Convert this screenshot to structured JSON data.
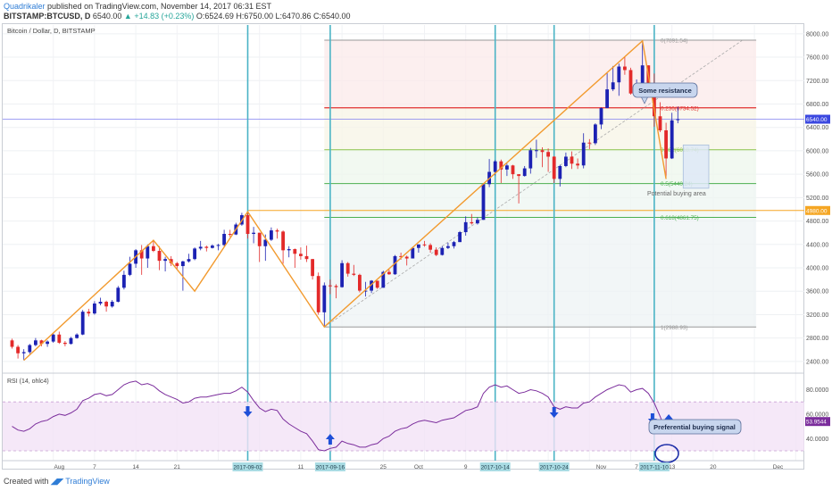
{
  "header": {
    "author": "Quadrikaler",
    "published": "published on TradingView.com, November 14, 2017 06:31 EST",
    "symbol": "BITSTAMP:BTCUSD, D",
    "price": "6540.00",
    "change": "▲ +14.83 (+0.23%)",
    "ohlc": "O:6524.69 H:6750.00 L:6470.86 C:6540.00"
  },
  "footer": {
    "created": "Created with",
    "brand": "TradingView"
  },
  "colors": {
    "up": "#1c22b3",
    "down": "#e32a2a",
    "zigzag": "#f29a2e",
    "vline": "#4ab3c5",
    "rsi": "#7b2d9c",
    "arrow": "#1e4fd8"
  },
  "chart_data": {
    "type": "candlestick",
    "title": "Bitcoin / Dollar, D, BITSTAMP",
    "price_axis": {
      "ticks": [
        "2400.00",
        "2800.00",
        "3200.00",
        "3600.00",
        "4000.00",
        "4400.00",
        "4800.00",
        "5200.00",
        "5600.00",
        "6000.00",
        "6400.00",
        "6800.00",
        "7200.00",
        "7600.00",
        "8000.00"
      ],
      "ylim": [
        2200,
        8150
      ]
    },
    "time_axis": {
      "ticks": [
        "Aug",
        "7",
        "14",
        "21",
        "11",
        "25",
        "Oct",
        "9",
        "Nov",
        "7",
        "13",
        "20",
        "Dec",
        "11"
      ],
      "highlighted": [
        "2017-09-02",
        "2017-09-16",
        "2017-10-14",
        "2017-10-24",
        "2017-11-10"
      ],
      "range": [
        "2017-07-24",
        "2017-12-11"
      ]
    },
    "current_price_label": "6540.00",
    "level_label": "4980.00",
    "fib_levels": [
      {
        "label": "0(7891.54)",
        "value": 7891.54
      },
      {
        "label": "0.236(6734.52)",
        "value": 6734.52
      },
      {
        "label": "0.382(6018.74)",
        "value": 6018.74
      },
      {
        "label": "0.5(5440.24)",
        "value": 5440.24
      },
      {
        "label": "0.618(4861.75)",
        "value": 4861.75
      },
      {
        "label": "1(2988.93)",
        "value": 2988.93
      }
    ],
    "annotations": [
      "Some resistance",
      "Potential buying area",
      "Preferential buying signal"
    ],
    "rsi": {
      "label": "RSI (14, ohlc4)",
      "current": "53.9544",
      "ticks": [
        "40.0000",
        "60.0000",
        "80.0000"
      ],
      "ylim": [
        22,
        92
      ],
      "band": [
        30,
        70
      ]
    },
    "zigzag": [
      {
        "date": "2017-07-26",
        "price": 2420
      },
      {
        "date": "2017-08-17",
        "price": 4470
      },
      {
        "date": "2017-08-24",
        "price": 3600
      },
      {
        "date": "2017-09-02",
        "price": 4960
      },
      {
        "date": "2017-09-15",
        "price": 2990
      },
      {
        "date": "2017-11-08",
        "price": 7880
      },
      {
        "date": "2017-11-12",
        "price": 5520
      }
    ],
    "ohlc": [
      [
        "2017-07-24",
        2760,
        2790,
        2620,
        2650
      ],
      [
        "2017-07-25",
        2650,
        2680,
        2450,
        2540
      ],
      [
        "2017-07-26",
        2540,
        2610,
        2420,
        2560
      ],
      [
        "2017-07-27",
        2560,
        2700,
        2530,
        2680
      ],
      [
        "2017-07-28",
        2680,
        2800,
        2660,
        2760
      ],
      [
        "2017-07-29",
        2760,
        2770,
        2660,
        2700
      ],
      [
        "2017-07-30",
        2700,
        2760,
        2650,
        2740
      ],
      [
        "2017-07-31",
        2740,
        2880,
        2720,
        2860
      ],
      [
        "2017-08-01",
        2860,
        2910,
        2700,
        2720
      ],
      [
        "2017-08-02",
        2720,
        2750,
        2660,
        2700
      ],
      [
        "2017-08-03",
        2700,
        2820,
        2690,
        2800
      ],
      [
        "2017-08-04",
        2800,
        2880,
        2790,
        2860
      ],
      [
        "2017-08-05",
        2860,
        3280,
        2850,
        3250
      ],
      [
        "2017-08-06",
        3250,
        3300,
        3170,
        3220
      ],
      [
        "2017-08-07",
        3220,
        3430,
        3200,
        3390
      ],
      [
        "2017-08-08",
        3390,
        3490,
        3360,
        3420
      ],
      [
        "2017-08-09",
        3420,
        3440,
        3250,
        3340
      ],
      [
        "2017-08-10",
        3340,
        3450,
        3320,
        3420
      ],
      [
        "2017-08-11",
        3420,
        3690,
        3410,
        3660
      ],
      [
        "2017-08-12",
        3660,
        3950,
        3630,
        3880
      ],
      [
        "2017-08-13",
        3880,
        4190,
        3860,
        4070
      ],
      [
        "2017-08-14",
        4070,
        4320,
        4000,
        4300
      ],
      [
        "2017-08-15",
        4300,
        4390,
        3880,
        4160
      ],
      [
        "2017-08-16",
        4160,
        4400,
        4000,
        4370
      ],
      [
        "2017-08-17",
        4370,
        4470,
        4270,
        4290
      ],
      [
        "2017-08-18",
        4290,
        4370,
        3960,
        4120
      ],
      [
        "2017-08-19",
        4120,
        4190,
        3940,
        4150
      ],
      [
        "2017-08-20",
        4150,
        4200,
        4030,
        4080
      ],
      [
        "2017-08-21",
        4080,
        4100,
        3970,
        4030
      ],
      [
        "2017-08-22",
        4030,
        4120,
        3610,
        4110
      ],
      [
        "2017-08-23",
        4110,
        4240,
        4090,
        4150
      ],
      [
        "2017-08-24",
        4150,
        4350,
        4130,
        4330
      ],
      [
        "2017-08-25",
        4330,
        4460,
        4300,
        4360
      ],
      [
        "2017-08-26",
        4360,
        4380,
        4280,
        4340
      ],
      [
        "2017-08-27",
        4340,
        4400,
        4330,
        4380
      ],
      [
        "2017-08-28",
        4380,
        4410,
        4300,
        4390
      ],
      [
        "2017-08-29",
        4390,
        4650,
        4370,
        4580
      ],
      [
        "2017-08-30",
        4580,
        4650,
        4530,
        4570
      ],
      [
        "2017-08-31",
        4570,
        4770,
        4560,
        4740
      ],
      [
        "2017-09-01",
        4740,
        4940,
        4720,
        4900
      ],
      [
        "2017-09-02",
        4900,
        4960,
        4500,
        4580
      ],
      [
        "2017-09-03",
        4580,
        4700,
        4420,
        4600
      ],
      [
        "2017-09-04",
        4600,
        4600,
        4100,
        4370
      ],
      [
        "2017-09-05",
        4370,
        4570,
        4120,
        4480
      ],
      [
        "2017-09-06",
        4480,
        4690,
        4460,
        4640
      ],
      [
        "2017-09-07",
        4640,
        4670,
        4500,
        4620
      ],
      [
        "2017-09-08",
        4620,
        4640,
        4070,
        4300
      ],
      [
        "2017-09-09",
        4300,
        4370,
        4180,
        4320
      ],
      [
        "2017-09-10",
        4320,
        4330,
        4000,
        4240
      ],
      [
        "2017-09-11",
        4240,
        4350,
        4140,
        4200
      ],
      [
        "2017-09-12",
        4200,
        4380,
        4100,
        4150
      ],
      [
        "2017-09-13",
        4150,
        4150,
        3800,
        3860
      ],
      [
        "2017-09-14",
        3860,
        3920,
        3200,
        3240
      ],
      [
        "2017-09-15",
        3240,
        3750,
        2990,
        3700
      ],
      [
        "2017-09-16",
        3700,
        3800,
        3550,
        3690
      ],
      [
        "2017-09-17",
        3690,
        3720,
        3480,
        3670
      ],
      [
        "2017-09-18",
        3670,
        4130,
        3660,
        4080
      ],
      [
        "2017-09-19",
        4080,
        4100,
        3850,
        3900
      ],
      [
        "2017-09-20",
        3900,
        4050,
        3860,
        3880
      ],
      [
        "2017-09-21",
        3880,
        3900,
        3580,
        3610
      ],
      [
        "2017-09-22",
        3610,
        3760,
        3510,
        3610
      ],
      [
        "2017-09-23",
        3610,
        3790,
        3570,
        3780
      ],
      [
        "2017-09-24",
        3780,
        3780,
        3640,
        3660
      ],
      [
        "2017-09-25",
        3660,
        3950,
        3660,
        3930
      ],
      [
        "2017-09-26",
        3930,
        3970,
        3880,
        3890
      ],
      [
        "2017-09-27",
        3890,
        4220,
        3880,
        4200
      ],
      [
        "2017-09-28",
        4200,
        4260,
        4140,
        4190
      ],
      [
        "2017-09-29",
        4190,
        4210,
        4040,
        4160
      ],
      [
        "2017-09-30",
        4160,
        4360,
        4160,
        4340
      ],
      [
        "2017-10-01",
        4340,
        4400,
        4260,
        4400
      ],
      [
        "2017-10-02",
        4400,
        4460,
        4360,
        4390
      ],
      [
        "2017-10-03",
        4390,
        4420,
        4260,
        4310
      ],
      [
        "2017-10-04",
        4310,
        4350,
        4200,
        4220
      ],
      [
        "2017-10-05",
        4220,
        4370,
        4210,
        4340
      ],
      [
        "2017-10-06",
        4340,
        4430,
        4320,
        4370
      ],
      [
        "2017-10-07",
        4370,
        4460,
        4330,
        4440
      ],
      [
        "2017-10-08",
        4440,
        4630,
        4440,
        4610
      ],
      [
        "2017-10-09",
        4610,
        4880,
        4550,
        4780
      ],
      [
        "2017-10-10",
        4780,
        4920,
        4740,
        4760
      ],
      [
        "2017-10-11",
        4760,
        4860,
        4740,
        4820
      ],
      [
        "2017-10-12",
        4820,
        5450,
        4820,
        5430
      ],
      [
        "2017-10-13",
        5430,
        5860,
        5380,
        5640
      ],
      [
        "2017-10-14",
        5640,
        5840,
        5580,
        5820
      ],
      [
        "2017-10-15",
        5820,
        5850,
        5450,
        5680
      ],
      [
        "2017-10-16",
        5680,
        5780,
        5570,
        5750
      ],
      [
        "2017-10-17",
        5750,
        5760,
        5520,
        5600
      ],
      [
        "2017-10-18",
        5600,
        5600,
        5100,
        5570
      ],
      [
        "2017-10-19",
        5570,
        5740,
        5560,
        5700
      ],
      [
        "2017-10-20",
        5700,
        6050,
        5610,
        6010
      ],
      [
        "2017-10-21",
        6010,
        6190,
        5880,
        6010
      ],
      [
        "2017-10-22",
        6010,
        6060,
        5720,
        5980
      ],
      [
        "2017-10-23",
        5980,
        6040,
        5640,
        5900
      ],
      [
        "2017-10-24",
        5900,
        5910,
        5450,
        5520
      ],
      [
        "2017-10-25",
        5520,
        5760,
        5390,
        5740
      ],
      [
        "2017-10-26",
        5740,
        5970,
        5720,
        5900
      ],
      [
        "2017-10-27",
        5900,
        5990,
        5690,
        5780
      ],
      [
        "2017-10-28",
        5780,
        5870,
        5690,
        5750
      ],
      [
        "2017-10-29",
        5750,
        6300,
        5700,
        6140
      ],
      [
        "2017-10-30",
        6140,
        6200,
        6030,
        6130
      ],
      [
        "2017-10-31",
        6130,
        6470,
        6100,
        6450
      ],
      [
        "2017-11-01",
        6450,
        6740,
        6370,
        6730
      ],
      [
        "2017-11-02",
        6730,
        7330,
        6730,
        7050
      ],
      [
        "2017-11-03",
        7050,
        7450,
        7020,
        7170
      ],
      [
        "2017-11-04",
        7170,
        7490,
        6940,
        7440
      ],
      [
        "2017-11-05",
        7440,
        7600,
        7300,
        7380
      ],
      [
        "2017-11-06",
        7380,
        7420,
        6960,
        6980
      ],
      [
        "2017-11-07",
        6980,
        7220,
        6960,
        7120
      ],
      [
        "2017-11-08",
        7120,
        7880,
        7070,
        7460
      ],
      [
        "2017-11-09",
        7460,
        7460,
        7060,
        7140
      ],
      [
        "2017-11-10",
        7140,
        7320,
        6410,
        6590
      ],
      [
        "2017-11-11",
        6590,
        6830,
        6320,
        6350
      ],
      [
        "2017-11-12",
        6350,
        6480,
        5520,
        5870
      ],
      [
        "2017-11-13",
        5870,
        6650,
        5860,
        6520
      ],
      [
        "2017-11-14",
        6524.69,
        6750,
        6470.86,
        6540
      ]
    ],
    "rsi_values": [
      [
        "2017-07-24",
        50
      ],
      [
        "2017-07-25",
        47
      ],
      [
        "2017-07-26",
        46
      ],
      [
        "2017-07-27",
        48
      ],
      [
        "2017-07-28",
        52
      ],
      [
        "2017-07-29",
        54
      ],
      [
        "2017-07-30",
        55
      ],
      [
        "2017-07-31",
        58
      ],
      [
        "2017-08-01",
        60
      ],
      [
        "2017-08-02",
        59
      ],
      [
        "2017-08-03",
        61
      ],
      [
        "2017-08-04",
        64
      ],
      [
        "2017-08-05",
        71
      ],
      [
        "2017-08-06",
        73
      ],
      [
        "2017-08-07",
        76
      ],
      [
        "2017-08-08",
        77
      ],
      [
        "2017-08-09",
        75
      ],
      [
        "2017-08-10",
        76
      ],
      [
        "2017-08-11",
        80
      ],
      [
        "2017-08-12",
        84
      ],
      [
        "2017-08-13",
        86
      ],
      [
        "2017-08-14",
        87
      ],
      [
        "2017-08-15",
        84
      ],
      [
        "2017-08-16",
        85
      ],
      [
        "2017-08-17",
        83
      ],
      [
        "2017-08-18",
        79
      ],
      [
        "2017-08-19",
        76
      ],
      [
        "2017-08-20",
        74
      ],
      [
        "2017-08-21",
        72
      ],
      [
        "2017-08-22",
        69
      ],
      [
        "2017-08-23",
        70
      ],
      [
        "2017-08-24",
        73
      ],
      [
        "2017-08-25",
        74
      ],
      [
        "2017-08-26",
        74
      ],
      [
        "2017-08-27",
        75
      ],
      [
        "2017-08-28",
        76
      ],
      [
        "2017-08-29",
        77
      ],
      [
        "2017-08-30",
        77
      ],
      [
        "2017-08-31",
        79
      ],
      [
        "2017-09-01",
        82
      ],
      [
        "2017-09-02",
        78
      ],
      [
        "2017-09-03",
        71
      ],
      [
        "2017-09-04",
        65
      ],
      [
        "2017-09-05",
        62
      ],
      [
        "2017-09-06",
        64
      ],
      [
        "2017-09-07",
        63
      ],
      [
        "2017-09-08",
        56
      ],
      [
        "2017-09-09",
        52
      ],
      [
        "2017-09-10",
        49
      ],
      [
        "2017-09-11",
        46
      ],
      [
        "2017-09-12",
        44
      ],
      [
        "2017-09-13",
        38
      ],
      [
        "2017-09-14",
        31
      ],
      [
        "2017-09-15",
        30
      ],
      [
        "2017-09-16",
        32
      ],
      [
        "2017-09-17",
        33
      ],
      [
        "2017-09-18",
        38
      ],
      [
        "2017-09-19",
        36
      ],
      [
        "2017-09-20",
        35
      ],
      [
        "2017-09-21",
        33
      ],
      [
        "2017-09-22",
        33
      ],
      [
        "2017-09-23",
        35
      ],
      [
        "2017-09-24",
        36
      ],
      [
        "2017-09-25",
        40
      ],
      [
        "2017-09-26",
        42
      ],
      [
        "2017-09-27",
        46
      ],
      [
        "2017-09-28",
        48
      ],
      [
        "2017-09-29",
        49
      ],
      [
        "2017-09-30",
        52
      ],
      [
        "2017-10-01",
        54
      ],
      [
        "2017-10-02",
        55
      ],
      [
        "2017-10-03",
        54
      ],
      [
        "2017-10-04",
        53
      ],
      [
        "2017-10-05",
        55
      ],
      [
        "2017-10-06",
        56
      ],
      [
        "2017-10-07",
        57
      ],
      [
        "2017-10-08",
        60
      ],
      [
        "2017-10-09",
        63
      ],
      [
        "2017-10-10",
        64
      ],
      [
        "2017-10-11",
        66
      ],
      [
        "2017-10-12",
        77
      ],
      [
        "2017-10-13",
        82
      ],
      [
        "2017-10-14",
        84
      ],
      [
        "2017-10-15",
        82
      ],
      [
        "2017-10-16",
        83
      ],
      [
        "2017-10-17",
        80
      ],
      [
        "2017-10-18",
        77
      ],
      [
        "2017-10-19",
        78
      ],
      [
        "2017-10-20",
        80
      ],
      [
        "2017-10-21",
        79
      ],
      [
        "2017-10-22",
        77
      ],
      [
        "2017-10-23",
        74
      ],
      [
        "2017-10-24",
        66
      ],
      [
        "2017-10-25",
        64
      ],
      [
        "2017-10-26",
        66
      ],
      [
        "2017-10-27",
        65
      ],
      [
        "2017-10-28",
        65
      ],
      [
        "2017-10-29",
        69
      ],
      [
        "2017-10-30",
        70
      ],
      [
        "2017-10-31",
        74
      ],
      [
        "2017-11-01",
        77
      ],
      [
        "2017-11-02",
        80
      ],
      [
        "2017-11-03",
        82
      ],
      [
        "2017-11-04",
        84
      ],
      [
        "2017-11-05",
        83
      ],
      [
        "2017-11-06",
        78
      ],
      [
        "2017-11-07",
        80
      ],
      [
        "2017-11-08",
        81
      ],
      [
        "2017-11-09",
        77
      ],
      [
        "2017-11-10",
        69
      ],
      [
        "2017-11-11",
        58
      ],
      [
        "2017-11-12",
        46
      ],
      [
        "2017-11-13",
        51
      ],
      [
        "2017-11-14",
        53.95
      ]
    ]
  }
}
